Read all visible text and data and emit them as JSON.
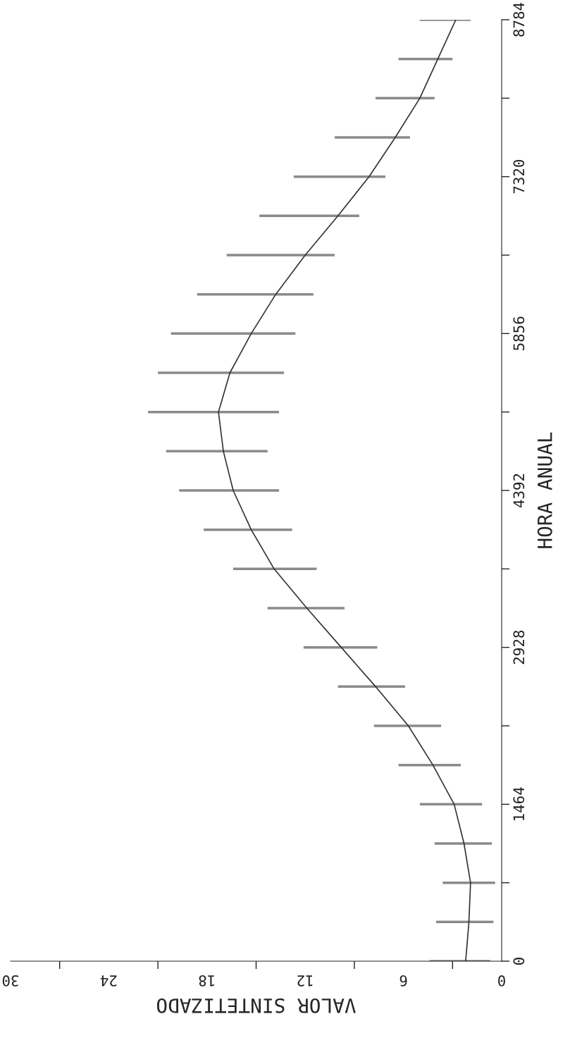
{
  "chart_data": {
    "type": "line",
    "xlabel": "VALOR SINTETIZADO",
    "ylabel": "HORA ANUAL",
    "series": [
      {
        "color": "#333333",
        "x": [
          2.2,
          2.0,
          1.9,
          2.3,
          2.9,
          4.2,
          5.7,
          7.7,
          9.8,
          11.9,
          13.9,
          15.3,
          16.4,
          17.0,
          17.3,
          16.6,
          15.3,
          13.8,
          12.0,
          10.0,
          8.1,
          6.5,
          5.0,
          3.9,
          2.8
        ],
        "values": [
          0,
          366,
          732,
          1098,
          1464,
          1830,
          2196,
          2562,
          2928,
          3294,
          3660,
          4026,
          4392,
          4758,
          5124,
          5490,
          5856,
          6222,
          6588,
          6954,
          7320,
          7686,
          8052,
          8418,
          8784
        ],
        "xerrors": [
          [
            0.7,
            4.4
          ],
          [
            0.5,
            4.0
          ],
          [
            0.4,
            3.6
          ],
          [
            0.6,
            4.1
          ],
          [
            1.2,
            5.0
          ],
          [
            2.5,
            6.3
          ],
          [
            3.7,
            7.8
          ],
          [
            5.9,
            10.0
          ],
          [
            7.6,
            12.1
          ],
          [
            9.6,
            14.3
          ],
          [
            11.3,
            16.4
          ],
          [
            12.8,
            18.2
          ],
          [
            13.6,
            19.7
          ],
          [
            14.3,
            20.5
          ],
          [
            13.6,
            21.6
          ],
          [
            13.3,
            21.0
          ],
          [
            12.6,
            20.2
          ],
          [
            11.5,
            18.6
          ],
          [
            10.2,
            16.8
          ],
          [
            8.7,
            14.8
          ],
          [
            7.1,
            12.7
          ],
          [
            5.6,
            10.2
          ],
          [
            4.1,
            7.7
          ],
          [
            3.0,
            6.3
          ],
          [
            1.9,
            5.0
          ]
        ]
      }
    ],
    "xlim": [
      30,
      0
    ],
    "ylim": [
      0,
      8784
    ],
    "xticks": [
      0,
      {
        "value": 3,
        "label": null
      },
      6,
      {
        "value": 9,
        "label": null
      },
      12,
      {
        "value": 15,
        "label": null
      },
      18,
      {
        "value": 21,
        "label": null
      },
      24,
      {
        "value": 27,
        "label": null
      },
      30
    ],
    "yticks": [
      0,
      {
        "value": 732,
        "label": null
      },
      1464,
      {
        "value": 2196,
        "label": null
      },
      2928,
      {
        "value": 3660,
        "label": null
      },
      4392,
      {
        "value": 5124,
        "label": null
      },
      5856,
      {
        "value": 6588,
        "label": null
      },
      7320,
      {
        "value": 8052,
        "label": null
      },
      8784
    ],
    "grid": false
  }
}
